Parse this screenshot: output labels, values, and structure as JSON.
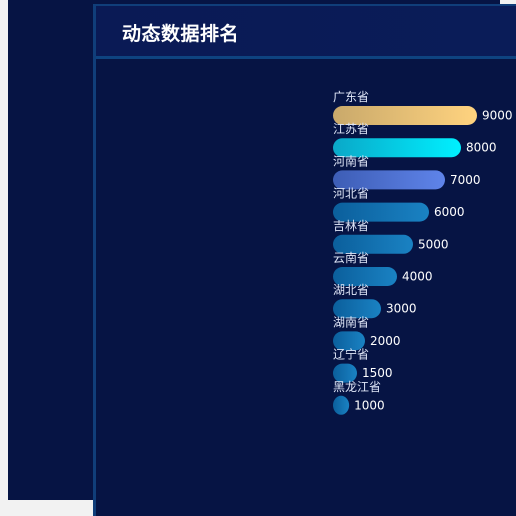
{
  "panel": {
    "title": "动态数据排名"
  },
  "chart_data": {
    "type": "bar",
    "orientation": "horizontal",
    "title": "",
    "xlabel": "",
    "ylabel": "",
    "grid": false,
    "categories": [
      "广东省",
      "江苏省",
      "河南省",
      "河北省",
      "吉林省",
      "云南省",
      "湖北省",
      "湖南省",
      "辽宁省",
      "黑龙江省"
    ],
    "values": [
      9000,
      8000,
      7000,
      6000,
      5000,
      4000,
      3000,
      2000,
      1500,
      1000
    ],
    "xlim": [
      0,
      9000
    ],
    "colors": {
      "rank1": [
        "#c9a96b",
        "#ffd37f"
      ],
      "rank2": [
        "#0aa8c8",
        "#00f0ff"
      ],
      "rank3": [
        "#3d5db5",
        "#5f84ea"
      ],
      "others": [
        "#0b5f9c",
        "#1a82c3"
      ]
    }
  }
}
